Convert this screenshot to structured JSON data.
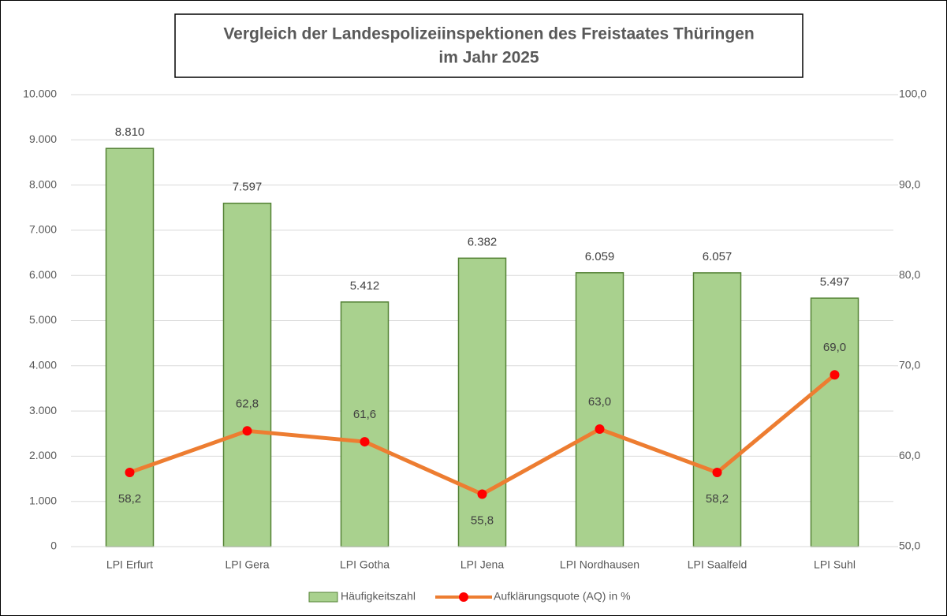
{
  "chart_data": {
    "type": "bar_line",
    "title": [
      "Vergleich der Landespolizeiinspektionen des Freistaates Thüringen",
      "im Jahr 2025"
    ],
    "categories": [
      "LPI Erfurt",
      "LPI Gera",
      "LPI Gotha",
      "LPI Jena",
      "LPI Nordhausen",
      "LPI Saalfeld",
      "LPI Suhl"
    ],
    "series": [
      {
        "name": "Häufigkeitszahl",
        "type": "bar",
        "color": "#a9d18e",
        "edge_color": "#548235",
        "axis": "y",
        "values": [
          8810,
          7597,
          5412,
          6382,
          6059,
          6057,
          5497
        ],
        "value_labels": [
          "8.810",
          "7.597",
          "5.412",
          "6.382",
          "6.059",
          "6.057",
          "5.497"
        ]
      },
      {
        "name": "Aufklärungsquote (AQ) in %",
        "type": "line",
        "color": "#ed7d31",
        "marker_color": "#ff0000",
        "axis": "y2",
        "values": [
          58.2,
          62.8,
          61.6,
          55.8,
          63.0,
          58.2,
          69.0
        ],
        "value_labels": [
          "58,2",
          "62,8",
          "61,6",
          "55,8",
          "63,0",
          "58,2",
          "69,0"
        ]
      }
    ],
    "ylim": [
      0,
      10000
    ],
    "yticks": [
      0,
      {
        "value": 1000,
        "label": "1.000"
      },
      {
        "value": 2000,
        "label": "2.000"
      },
      {
        "value": 3000,
        "label": "3.000"
      },
      {
        "value": 4000,
        "label": "4.000"
      },
      {
        "value": 5000,
        "label": "5.000"
      },
      {
        "value": 6000,
        "label": "6.000"
      },
      {
        "value": 7000,
        "label": "7.000"
      },
      {
        "value": 8000,
        "label": "8.000"
      },
      {
        "value": 9000,
        "label": "9.000"
      },
      {
        "value": 10000,
        "label": "10.000"
      }
    ],
    "y2lim": [
      50,
      100
    ],
    "y2ticks": [
      {
        "value": 50,
        "label": "50,0"
      },
      {
        "value": 60,
        "label": "60,0"
      },
      {
        "value": 70,
        "label": "70,0"
      },
      {
        "value": 80,
        "label": "80,0"
      },
      {
        "value": 90,
        "label": "90,0"
      },
      {
        "value": 100,
        "label": "100,0"
      }
    ],
    "grid": true,
    "legend": "bottom"
  }
}
